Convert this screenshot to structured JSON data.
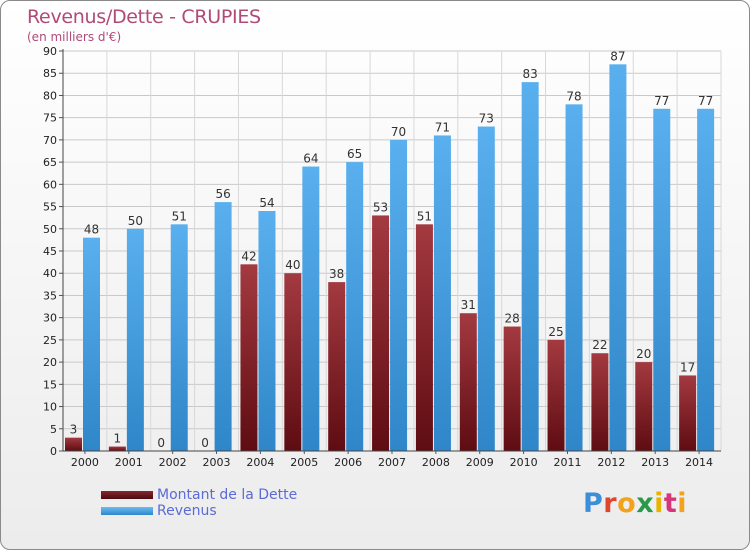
{
  "header": {
    "title": "Revenus/Dette - CRUPIES",
    "subtitle": "(en milliers d'€)"
  },
  "logo": {
    "text": "Proxiti"
  },
  "chart_data": {
    "type": "bar",
    "categories": [
      "2000",
      "2001",
      "2002",
      "2003",
      "2004",
      "2005",
      "2006",
      "2007",
      "2008",
      "2009",
      "2010",
      "2011",
      "2012",
      "2013",
      "2014"
    ],
    "series": [
      {
        "name": "Montant de la Dette",
        "color": "#7a1c22",
        "values": [
          3,
          1,
          0,
          0,
          42,
          40,
          38,
          53,
          51,
          31,
          28,
          25,
          22,
          20,
          17
        ]
      },
      {
        "name": "Revenus",
        "color": "#4ea6e6",
        "values": [
          48,
          50,
          51,
          56,
          54,
          64,
          65,
          70,
          71,
          73,
          83,
          78,
          87,
          77,
          77
        ]
      }
    ],
    "ylim": [
      0,
      90
    ],
    "yticks": [
      0,
      5,
      10,
      15,
      20,
      25,
      30,
      35,
      40,
      45,
      50,
      55,
      60,
      65,
      70,
      75,
      80,
      85,
      90
    ],
    "grid": true,
    "legend_position": "bottom-left"
  }
}
